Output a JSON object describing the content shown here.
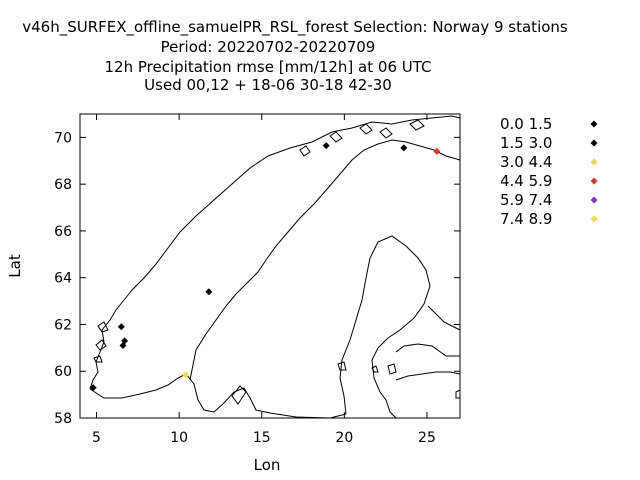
{
  "title_lines": [
    "v46h_SURFEX_offline_samuelPR_RSL_forest   Selection: Norway      9 stations",
    "Period: 20220702-20220709",
    "12h Precipitation rmse [mm/12h] at  06 UTC",
    "Used  00,12  + 18-06 30-18 42-30"
  ],
  "chart_data": {
    "type": "scatter",
    "xlabel": "Lon",
    "ylabel": "Lat",
    "xlim": [
      4,
      27
    ],
    "ylim": [
      58,
      71
    ],
    "xticks": [
      5,
      10,
      15,
      20,
      25
    ],
    "yticks": [
      58,
      60,
      62,
      64,
      66,
      68,
      70
    ],
    "legend_position": "right",
    "legend": [
      {
        "label": "0.0 1.5",
        "color": "#000000"
      },
      {
        "label": "1.5 3.0",
        "color": "#000000"
      },
      {
        "label": "3.0 4.4",
        "color": "#f5d142"
      },
      {
        "label": "4.4 5.9",
        "color": "#d93b1f"
      },
      {
        "label": "5.9 7.4",
        "color": "#8a2be2"
      },
      {
        "label": "7.4 8.9",
        "color": "#f2e33a"
      }
    ],
    "points": [
      {
        "lon": 4.8,
        "lat": 59.3,
        "color": "#000000"
      },
      {
        "lon": 6.5,
        "lat": 61.9,
        "color": "#000000"
      },
      {
        "lon": 6.7,
        "lat": 61.3,
        "color": "#000000"
      },
      {
        "lon": 6.6,
        "lat": 61.1,
        "color": "#000000"
      },
      {
        "lon": 10.4,
        "lat": 59.85,
        "color": "#f2e33a"
      },
      {
        "lon": 11.8,
        "lat": 63.4,
        "color": "#000000"
      },
      {
        "lon": 18.9,
        "lat": 69.65,
        "color": "#000000"
      },
      {
        "lon": 23.6,
        "lat": 69.55,
        "color": "#000000"
      },
      {
        "lon": 25.6,
        "lat": 69.4,
        "color": "#d93b1f"
      }
    ]
  }
}
